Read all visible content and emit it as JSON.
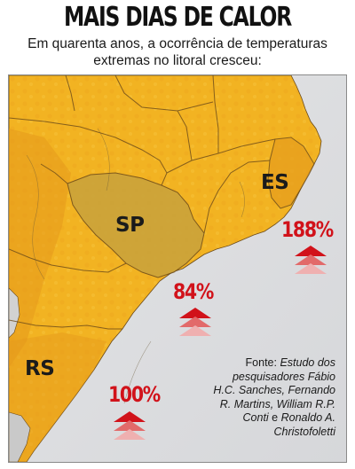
{
  "header": {
    "title": "MAIS DIAS DE CALOR",
    "subtitle_line1": "Em quarenta anos, a ocorrência de temperaturas",
    "subtitle_line2": "extremas no litoral cresceu:"
  },
  "map": {
    "colors": {
      "land_main": "#f2b322",
      "land_light": "#f6c638",
      "land_dark": "#e0961a",
      "highlight_state": "#c8a23c",
      "ocean": "#dcdddf",
      "border_lines": "#6b4a1a",
      "arrow_red": "#d1121a"
    },
    "states": [
      {
        "id": "sp",
        "label": "SP"
      },
      {
        "id": "es",
        "label": "ES"
      },
      {
        "id": "rs",
        "label": "RS"
      }
    ],
    "increases": [
      {
        "id": "es",
        "value": "188%"
      },
      {
        "id": "sp",
        "value": "84%"
      },
      {
        "id": "rs",
        "value": "100%"
      }
    ]
  },
  "source": {
    "prefix": "Fonte: ",
    "text": "Estudo dos pesquisadores Fábio H.C. Sanches, Fernando R. Martins, William R.P. Conti",
    "connector": " e ",
    "text2": "Ronaldo A. Christofoletti"
  }
}
